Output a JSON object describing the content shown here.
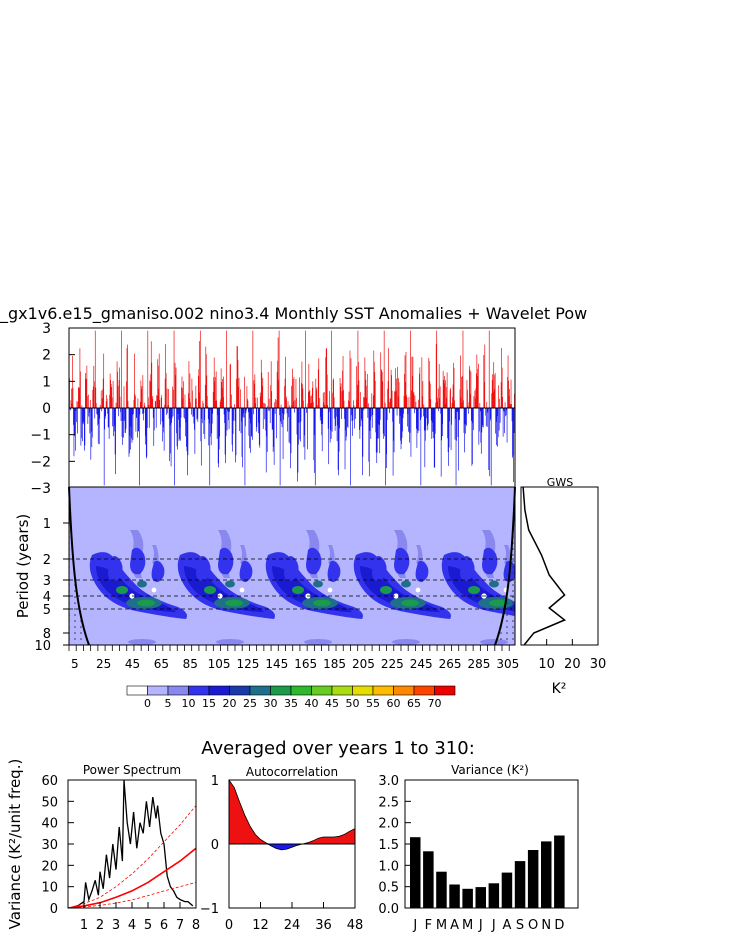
{
  "figure_title": "_gx1v6.e15_gmaniso.002 nino3.4 Monthly SST Anomalies + Wavelet Pow",
  "bottom_title": "Averaged over years 1 to 310:",
  "colors": {
    "positive": "#ee1111",
    "negative": "#1a1aee",
    "background": "#ffffff",
    "dash_red": "#ff0000"
  },
  "chart_data": [
    {
      "id": "sst-anomalies",
      "type": "bar",
      "title": "",
      "ylim": [
        -3,
        3
      ],
      "yticks": [
        "3",
        "2",
        "1",
        "0",
        "−1",
        "−2",
        "−3"
      ],
      "n_months": 3720,
      "note_values": "monthly SST anomaly time series, positive red / negative blue",
      "series": [
        {
          "name": "",
          "values_summary": "oscillating anomalies within -2.9 .. 3.0"
        }
      ]
    },
    {
      "id": "wavelet-power",
      "type": "heatmap",
      "ylabel": "Period (years)",
      "yticks": [
        "1",
        "2",
        "3",
        "4",
        "5",
        "8",
        "10"
      ],
      "xticks": [
        "5",
        "25",
        "45",
        "65",
        "85",
        "105",
        "125",
        "145",
        "165",
        "185",
        "205",
        "225",
        "245",
        "265",
        "285",
        "305"
      ],
      "xlim": [
        1,
        310
      ],
      "ylim": [
        0.5,
        10.5
      ],
      "dashed_periods": [
        2,
        3,
        4,
        5
      ],
      "colorbar": {
        "labels": [
          "0",
          "5",
          "10",
          "15",
          "20",
          "25",
          "30",
          "35",
          "40",
          "45",
          "50",
          "55",
          "60",
          "65",
          "70"
        ],
        "colors": [
          "#ffffff",
          "#b4b4ff",
          "#8888ee",
          "#3333ee",
          "#1a1ad0",
          "#1a3aa8",
          "#1e6e8c",
          "#1a9a4a",
          "#2eb82e",
          "#66cc22",
          "#aadd11",
          "#e6dd00",
          "#ffbb00",
          "#ff8800",
          "#ff4400",
          "#ee0000"
        ]
      }
    },
    {
      "id": "gws",
      "type": "line",
      "title": "GWS",
      "xlabel": "K²",
      "xticks": [
        "10",
        "20",
        "30"
      ],
      "xlim": [
        0,
        30
      ],
      "x": [
        0.3,
        0.5,
        1,
        2,
        3,
        4,
        5,
        6,
        7,
        8,
        9,
        10
      ],
      "y": [
        0.5,
        2,
        6,
        12,
        18,
        9,
        16,
        9,
        3,
        1,
        0.5,
        0.3
      ]
    },
    {
      "id": "power-spectrum",
      "type": "line",
      "title": "Power Spectrum",
      "ylabel": "Variance (K²/unit freq.)",
      "xticks": [
        "1",
        "2",
        "3",
        "4",
        "5",
        "6",
        "7",
        "8"
      ],
      "yticks": [
        "0",
        "10",
        "20",
        "30",
        "40",
        "50",
        "60"
      ],
      "xlim": [
        0,
        8
      ],
      "ylim": [
        0,
        60
      ],
      "series": [
        {
          "name": "",
          "x": [
            0.1,
            0.6,
            1.0,
            1.1,
            1.3,
            1.5,
            1.7,
            1.9,
            2.0,
            2.2,
            2.4,
            2.6,
            2.8,
            3.0,
            3.2,
            3.4,
            3.5,
            3.7,
            3.9,
            4.1,
            4.3,
            4.5,
            4.7,
            4.9,
            5.1,
            5.3,
            5.5,
            5.6,
            5.8,
            6.0,
            6.2,
            6.4,
            6.6,
            6.8,
            7.0,
            7.3,
            7.5,
            7.8
          ],
          "y": [
            0,
            1,
            3,
            12,
            4,
            8,
            13,
            6,
            17,
            9,
            25,
            14,
            30,
            18,
            38,
            22,
            60,
            40,
            30,
            45,
            28,
            40,
            35,
            50,
            38,
            52,
            42,
            48,
            35,
            30,
            15,
            10,
            8,
            5,
            4,
            3,
            3,
            1
          ]
        },
        {
          "name": "",
          "x": [
            0,
            1,
            2,
            3,
            4,
            5,
            6,
            7,
            8
          ],
          "y": [
            0,
            1,
            2.5,
            5,
            8,
            12,
            17,
            22,
            28
          ]
        },
        {
          "name": "",
          "x": [
            0,
            1,
            2,
            3,
            4,
            5,
            6,
            7,
            8
          ],
          "y": [
            0,
            2,
            5,
            10,
            16,
            23,
            31,
            39,
            48
          ]
        },
        {
          "name": "",
          "x": [
            0,
            1,
            2,
            3,
            4,
            5,
            6,
            7,
            8
          ],
          "y": [
            0,
            0.5,
            1.2,
            2.3,
            3.8,
            5.8,
            8,
            10,
            12
          ]
        }
      ]
    },
    {
      "id": "autocorrelation",
      "type": "area",
      "title": "Autocorrelation",
      "xticks": [
        "0",
        "12",
        "24",
        "36",
        "48"
      ],
      "yticks": [
        "1",
        "0",
        "−1"
      ],
      "xlim": [
        0,
        48
      ],
      "ylim": [
        -1,
        1
      ],
      "x": [
        0,
        2,
        4,
        6,
        8,
        10,
        12,
        14,
        16,
        18,
        20,
        22,
        24,
        26,
        28,
        30,
        32,
        34,
        36,
        38,
        40,
        42,
        44,
        46,
        48
      ],
      "y": [
        1.0,
        0.88,
        0.66,
        0.45,
        0.28,
        0.15,
        0.07,
        0.02,
        -0.03,
        -0.07,
        -0.09,
        -0.08,
        -0.05,
        -0.02,
        0.0,
        0.02,
        0.05,
        0.09,
        0.11,
        0.11,
        0.11,
        0.12,
        0.15,
        0.2,
        0.24
      ]
    },
    {
      "id": "variance",
      "type": "bar",
      "title": "Variance (K²)",
      "categories": [
        "J",
        "F",
        "M",
        "A",
        "M",
        "J",
        "J",
        "A",
        "S",
        "O",
        "N",
        "D"
      ],
      "values": [
        1.66,
        1.33,
        0.85,
        0.55,
        0.45,
        0.49,
        0.58,
        0.83,
        1.1,
        1.36,
        1.56,
        1.7
      ],
      "yticks": [
        "0.0",
        "0.5",
        "1.0",
        "1.5",
        "2.0",
        "2.5",
        "3.0"
      ],
      "ylim": [
        0,
        3
      ]
    }
  ]
}
